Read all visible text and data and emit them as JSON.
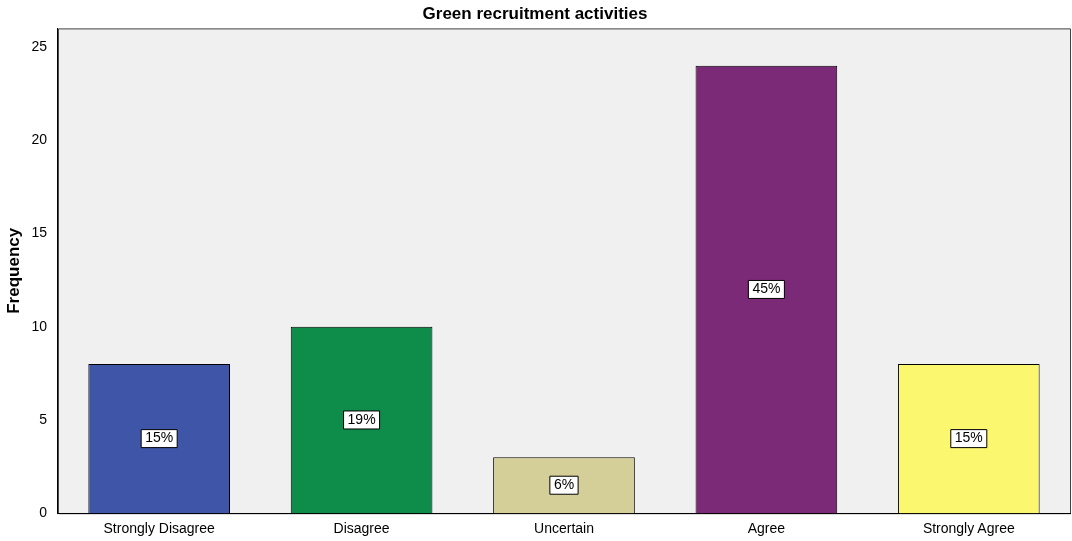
{
  "chart_data": {
    "type": "bar",
    "title": "Green recruitment activities",
    "ylabel": "Frequency",
    "categories": [
      "Strongly Disagree",
      "Disagree",
      "Uncertain",
      "Agree",
      "Strongly Agree"
    ],
    "values": [
      8,
      10,
      3,
      24,
      8
    ],
    "colors": [
      "#3f56a8",
      "#0e8c4a",
      "#d4ce99",
      "#7b2a78",
      "#fbf76f"
    ],
    "annotations": [
      {
        "text": "15%",
        "x": "Strongly Disagree",
        "y": 4
      },
      {
        "text": "19%",
        "x": "Disagree",
        "y": 5
      },
      {
        "text": "6%",
        "x": "Uncertain",
        "y": 1.5
      },
      {
        "text": "45%",
        "x": "Agree",
        "y": 12
      },
      {
        "text": "15%",
        "x": "Strongly Agree",
        "y": 4
      }
    ],
    "ylim": [
      0,
      26
    ],
    "yticks": [
      0,
      5,
      10,
      15,
      20,
      25
    ],
    "grid": false,
    "legend": false
  }
}
